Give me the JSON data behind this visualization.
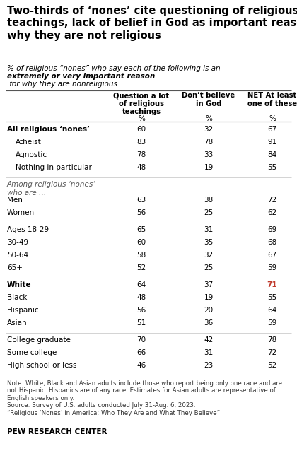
{
  "title": "Two-thirds of ‘nones’ cite questioning of religious\nteachings, lack of belief in God as important reasons\nwhy they are not religious",
  "subtitle_normal": "% of religious “nones” who say each of the following is an ",
  "subtitle_bold": "extremely or\nvery important reason",
  "subtitle_end": " for why they are nonreligious",
  "col_headers": [
    "Question a lot\nof religious\nteachings",
    "Don’t believe\nin God",
    "NET At least\none of these"
  ],
  "col_sub": [
    "%",
    "%",
    "%"
  ],
  "rows": [
    {
      "label": "All religious ‘nones’",
      "indent": 0,
      "bold": true,
      "vals": [
        60,
        32,
        67
      ],
      "net_color": "#000000",
      "spacer_after": false
    },
    {
      "label": "Atheist",
      "indent": 1,
      "bold": false,
      "vals": [
        83,
        78,
        91
      ],
      "net_color": "#000000",
      "spacer_after": false
    },
    {
      "label": "Agnostic",
      "indent": 1,
      "bold": false,
      "vals": [
        78,
        33,
        84
      ],
      "net_color": "#000000",
      "spacer_after": false
    },
    {
      "label": "Nothing in particular",
      "indent": 1,
      "bold": false,
      "vals": [
        48,
        19,
        55
      ],
      "net_color": "#000000",
      "spacer_after": true
    },
    {
      "label": "Among religious ‘nones’\nwho are …",
      "indent": 0,
      "bold": false,
      "vals": [
        null,
        null,
        null
      ],
      "net_color": "#000000",
      "spacer_after": false,
      "italic": true,
      "header_row": true
    },
    {
      "label": "Men",
      "indent": 0,
      "bold": false,
      "vals": [
        63,
        38,
        72
      ],
      "net_color": "#000000",
      "spacer_after": false
    },
    {
      "label": "Women",
      "indent": 0,
      "bold": false,
      "vals": [
        56,
        25,
        62
      ],
      "net_color": "#000000",
      "spacer_after": true
    },
    {
      "label": "Ages 18-29",
      "indent": 0,
      "bold": false,
      "vals": [
        65,
        31,
        69
      ],
      "net_color": "#000000",
      "spacer_after": false
    },
    {
      "label": "30-49",
      "indent": 0,
      "bold": false,
      "vals": [
        60,
        35,
        68
      ],
      "net_color": "#000000",
      "spacer_after": false
    },
    {
      "label": "50-64",
      "indent": 0,
      "bold": false,
      "vals": [
        58,
        32,
        67
      ],
      "net_color": "#000000",
      "spacer_after": false
    },
    {
      "label": "65+",
      "indent": 0,
      "bold": false,
      "vals": [
        52,
        25,
        59
      ],
      "net_color": "#000000",
      "spacer_after": true
    },
    {
      "label": "White",
      "indent": 0,
      "bold": true,
      "vals": [
        64,
        37,
        71
      ],
      "net_color": "#000000",
      "spacer_after": false
    },
    {
      "label": "Black",
      "indent": 0,
      "bold": false,
      "vals": [
        48,
        19,
        55
      ],
      "net_color": "#000000",
      "spacer_after": false
    },
    {
      "label": "Hispanic",
      "indent": 0,
      "bold": false,
      "vals": [
        56,
        20,
        64
      ],
      "net_color": "#000000",
      "spacer_after": false
    },
    {
      "label": "Asian",
      "indent": 0,
      "bold": false,
      "vals": [
        51,
        36,
        59
      ],
      "net_color": "#000000",
      "spacer_after": true
    },
    {
      "label": "College graduate",
      "indent": 0,
      "bold": false,
      "vals": [
        70,
        42,
        78
      ],
      "net_color": "#000000",
      "spacer_after": false
    },
    {
      "label": "Some college",
      "indent": 0,
      "bold": false,
      "vals": [
        66,
        31,
        72
      ],
      "net_color": "#000000",
      "spacer_after": false
    },
    {
      "label": "High school or less",
      "indent": 0,
      "bold": false,
      "vals": [
        46,
        23,
        52
      ],
      "net_color": "#000000",
      "spacer_after": false
    }
  ],
  "note": "Note: White, Black and Asian adults include those who report being only one race and are\nnot Hispanic. Hispanics are of any race. Estimates for Asian adults are representative of\nEnglish speakers only.\nSource: Survey of U.S. adults conducted July 31-Aug. 6, 2023.\n“Religious ‘Nones’ in America: Who They Are and What They Believe”",
  "footer": "PEW RESEARCH CENTER",
  "bg_color": "#ffffff",
  "text_color": "#000000",
  "line_color": "#cccccc",
  "net_highlight_color": "#c0392b",
  "white_net_color": "#c0392b"
}
